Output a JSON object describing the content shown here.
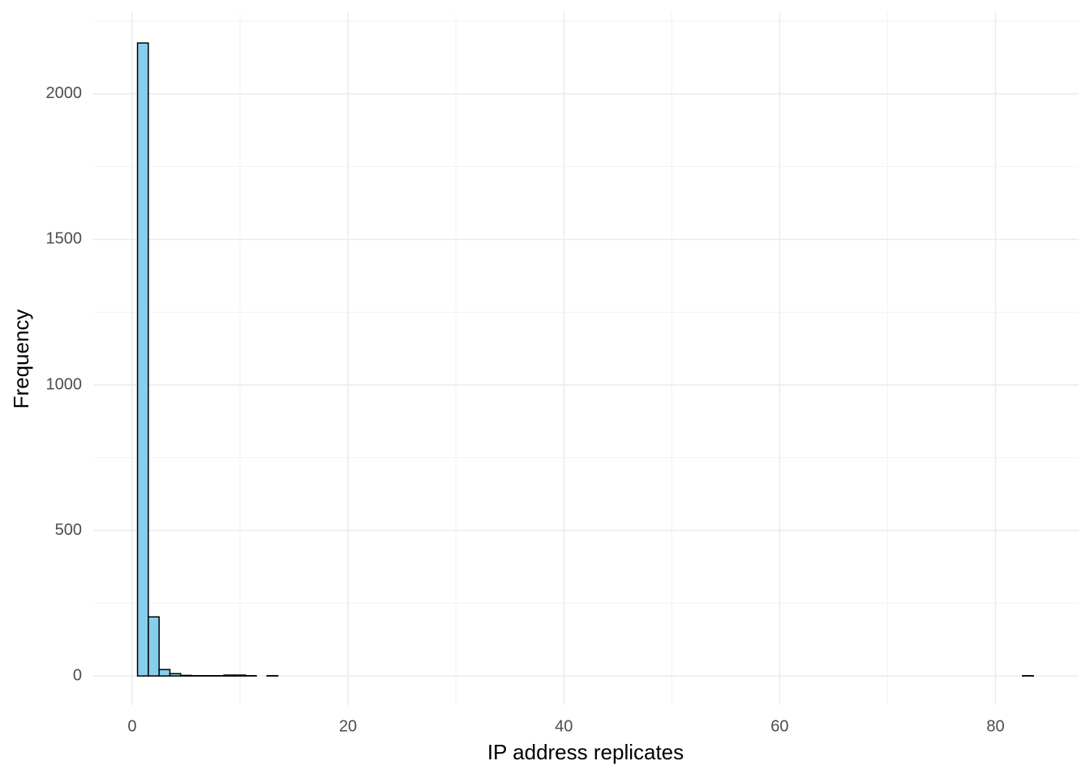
{
  "chart_data": {
    "type": "histogram",
    "x_label": "IP address replicates",
    "y_label": "Frequency",
    "bins": [
      0.5,
      1.5,
      2.5,
      3.5,
      4.5,
      5.5,
      6.5,
      7.5,
      8.5,
      9.5,
      10.5,
      11.5,
      12.5,
      13.5,
      14.5,
      15.5,
      16.5,
      17.5,
      18.5,
      19.5,
      20.5,
      21.5,
      22.5,
      23.5,
      24.5,
      25.5,
      26.5,
      27.5,
      28.5,
      29.5,
      30.5,
      31.5,
      32.5,
      33.5,
      34.5,
      35.5,
      36.5,
      37.5,
      38.5,
      39.5,
      40.5,
      41.5,
      42.5,
      43.5,
      44.5,
      45.5,
      46.5,
      47.5,
      48.5,
      49.5,
      50.5,
      51.5,
      52.5,
      53.5,
      54.5,
      55.5,
      56.5,
      57.5,
      58.5,
      59.5,
      60.5,
      61.5,
      62.5,
      63.5,
      64.5,
      65.5,
      66.5,
      67.5,
      68.5,
      69.5,
      70.5,
      71.5,
      72.5,
      73.5,
      74.5,
      75.5,
      76.5,
      77.5,
      78.5,
      79.5,
      80.5,
      81.5,
      82.5,
      83.5
    ],
    "values": [
      2175,
      203,
      22,
      8,
      2,
      1,
      1,
      1,
      3,
      3,
      1,
      0,
      1,
      0,
      0,
      0,
      0,
      0,
      0,
      0,
      0,
      0,
      0,
      0,
      0,
      0,
      0,
      0,
      0,
      0,
      0,
      0,
      0,
      0,
      0,
      0,
      0,
      0,
      0,
      0,
      0,
      0,
      0,
      0,
      0,
      0,
      0,
      0,
      0,
      0,
      0,
      0,
      0,
      0,
      0,
      0,
      0,
      0,
      0,
      0,
      0,
      0,
      0,
      0,
      0,
      0,
      0,
      0,
      0,
      0,
      0,
      0,
      0,
      0,
      0,
      0,
      0,
      0,
      0,
      0,
      0,
      0,
      1
    ],
    "color": "#87ceeb",
    "edge_color": "#000000",
    "xlim": [
      -3.6,
      87.7
    ],
    "ylim": [
      -100,
      2281
    ],
    "xticks": [
      0,
      20,
      40,
      60,
      80
    ],
    "yticks": [
      0,
      500,
      1000,
      1500,
      2000
    ],
    "grid": true
  }
}
